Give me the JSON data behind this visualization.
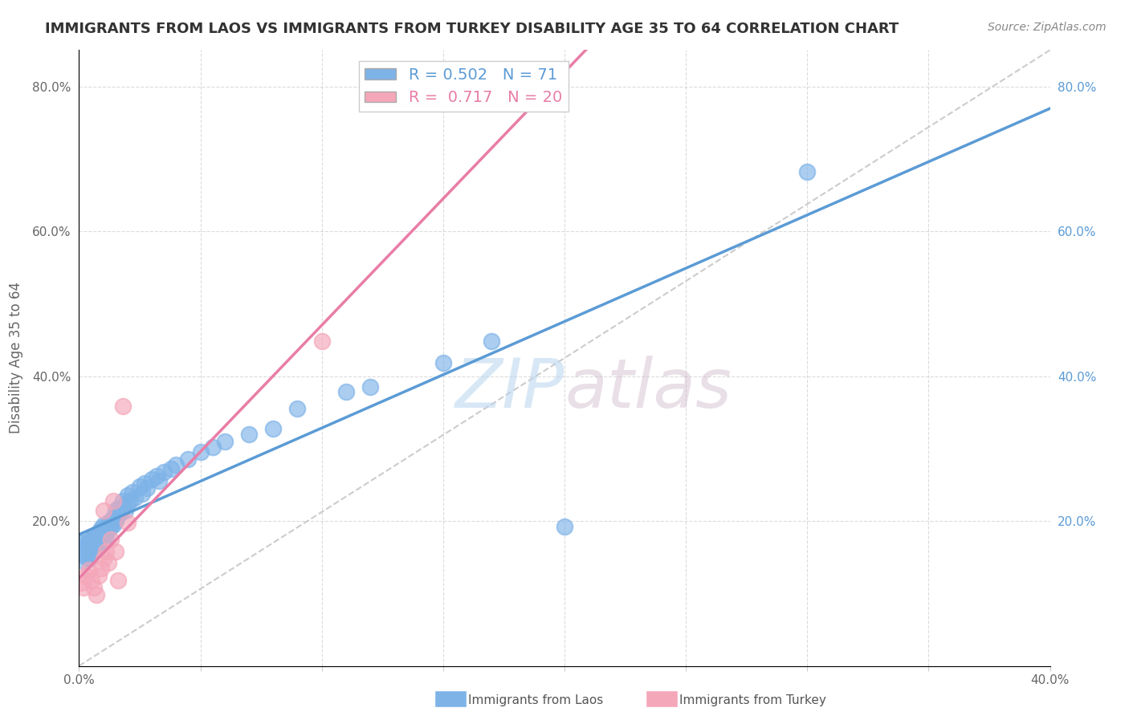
{
  "title": "IMMIGRANTS FROM LAOS VS IMMIGRANTS FROM TURKEY DISABILITY AGE 35 TO 64 CORRELATION CHART",
  "source": "Source: ZipAtlas.com",
  "ylabel": "Disability Age 35 to 64",
  "xlim": [
    0.0,
    0.4
  ],
  "ylim": [
    0.0,
    0.85
  ],
  "xticks": [
    0.0,
    0.05,
    0.1,
    0.15,
    0.2,
    0.25,
    0.3,
    0.35,
    0.4
  ],
  "yticks": [
    0.0,
    0.2,
    0.4,
    0.6,
    0.8
  ],
  "laos_color": "#7EB3E8",
  "turkey_color": "#F4A7B9",
  "laos_R": 0.502,
  "laos_N": 71,
  "turkey_R": 0.717,
  "turkey_N": 20,
  "laos_points_x": [
    0.001,
    0.001,
    0.002,
    0.002,
    0.002,
    0.003,
    0.003,
    0.003,
    0.004,
    0.004,
    0.004,
    0.005,
    0.005,
    0.005,
    0.006,
    0.006,
    0.006,
    0.007,
    0.007,
    0.008,
    0.008,
    0.008,
    0.009,
    0.009,
    0.01,
    0.01,
    0.01,
    0.011,
    0.011,
    0.012,
    0.012,
    0.013,
    0.013,
    0.014,
    0.014,
    0.015,
    0.015,
    0.016,
    0.016,
    0.017,
    0.018,
    0.018,
    0.019,
    0.02,
    0.02,
    0.021,
    0.022,
    0.023,
    0.025,
    0.026,
    0.027,
    0.028,
    0.03,
    0.032,
    0.033,
    0.035,
    0.038,
    0.04,
    0.045,
    0.05,
    0.055,
    0.06,
    0.07,
    0.08,
    0.09,
    0.11,
    0.12,
    0.15,
    0.17,
    0.2,
    0.3
  ],
  "laos_points_y": [
    0.155,
    0.16,
    0.145,
    0.165,
    0.17,
    0.15,
    0.16,
    0.175,
    0.148,
    0.162,
    0.172,
    0.155,
    0.168,
    0.175,
    0.16,
    0.17,
    0.178,
    0.165,
    0.175,
    0.17,
    0.18,
    0.185,
    0.175,
    0.19,
    0.175,
    0.185,
    0.195,
    0.18,
    0.192,
    0.188,
    0.198,
    0.192,
    0.2,
    0.195,
    0.205,
    0.2,
    0.215,
    0.208,
    0.218,
    0.212,
    0.22,
    0.228,
    0.215,
    0.225,
    0.235,
    0.228,
    0.24,
    0.232,
    0.248,
    0.238,
    0.252,
    0.245,
    0.258,
    0.262,
    0.255,
    0.268,
    0.272,
    0.278,
    0.285,
    0.295,
    0.302,
    0.31,
    0.32,
    0.328,
    0.355,
    0.378,
    0.385,
    0.418,
    0.448,
    0.192,
    0.682
  ],
  "turkey_points_x": [
    0.001,
    0.002,
    0.003,
    0.004,
    0.005,
    0.006,
    0.007,
    0.008,
    0.009,
    0.01,
    0.01,
    0.011,
    0.012,
    0.013,
    0.014,
    0.015,
    0.016,
    0.018,
    0.02,
    0.1
  ],
  "turkey_points_y": [
    0.115,
    0.108,
    0.125,
    0.132,
    0.118,
    0.108,
    0.098,
    0.125,
    0.135,
    0.215,
    0.148,
    0.158,
    0.142,
    0.175,
    0.228,
    0.158,
    0.118,
    0.358,
    0.198,
    0.448
  ],
  "diagonal_line_x": [
    0.0,
    0.4
  ],
  "diagonal_line_y": [
    0.0,
    0.85
  ],
  "watermark_zip": "ZIP",
  "watermark_atlas": "atlas",
  "background_color": "#ffffff",
  "grid_color": "#cccccc",
  "title_color": "#333333",
  "axis_label_color": "#666666",
  "tick_label_color": "#666666",
  "laos_line_color": "#5B9BD5",
  "turkey_line_color": "#E87DA6",
  "diagonal_color": "#cccccc"
}
